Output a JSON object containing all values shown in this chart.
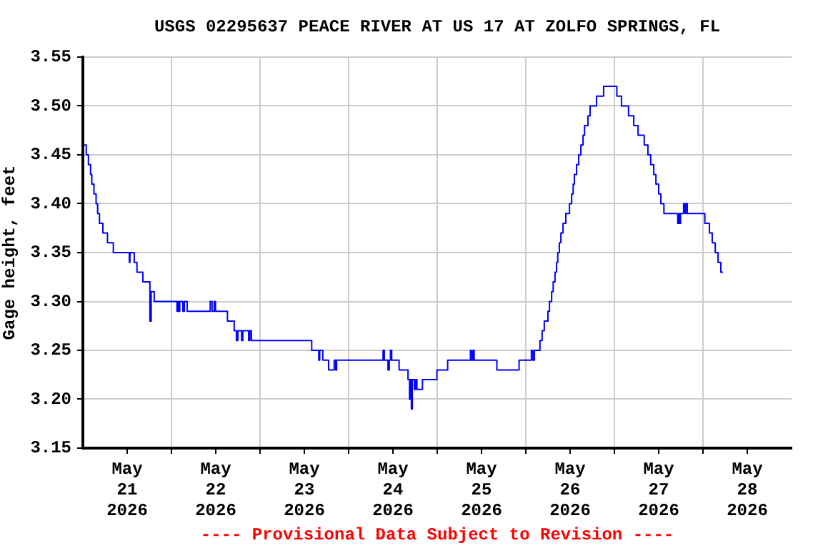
{
  "chart_data": {
    "type": "step",
    "title": "USGS 02295637 PEACE RIVER AT US 17 AT ZOLFO SPRINGS, FL",
    "ylabel": "Gage height, feet",
    "annotations": [
      "---- Provisional Data Subject to Revision ----"
    ],
    "xlim": [
      "2026-05-21T00:00",
      "2026-05-29T00:00"
    ],
    "xticks": [
      {
        "value": "2026-05-21T12:00",
        "label": "May 21 2026"
      },
      {
        "value": "2026-05-22T00:00",
        "label": null
      },
      {
        "value": "2026-05-22T12:00",
        "label": "May 22 2026"
      },
      {
        "value": "2026-05-23T00:00",
        "label": null
      },
      {
        "value": "2026-05-23T12:00",
        "label": "May 23 2026"
      },
      {
        "value": "2026-05-24T00:00",
        "label": null
      },
      {
        "value": "2026-05-24T12:00",
        "label": "May 24 2026"
      },
      {
        "value": "2026-05-25T00:00",
        "label": null
      },
      {
        "value": "2026-05-25T12:00",
        "label": "May 25 2026"
      },
      {
        "value": "2026-05-26T00:00",
        "label": null
      },
      {
        "value": "2026-05-26T12:00",
        "label": "May 26 2026"
      },
      {
        "value": "2026-05-27T00:00",
        "label": null
      },
      {
        "value": "2026-05-27T12:00",
        "label": "May 27 2026"
      },
      {
        "value": "2026-05-28T00:00",
        "label": null
      },
      {
        "value": "2026-05-28T12:00",
        "label": "May 28 2026"
      }
    ],
    "ylim": [
      3.15,
      3.55
    ],
    "yticks": [
      3.15,
      {
        "value": 3.2,
        "label": "3.20"
      },
      3.25,
      {
        "value": 3.3,
        "label": "3.30"
      },
      3.35,
      {
        "value": 3.4,
        "label": "3.40"
      },
      3.45,
      {
        "value": 3.5,
        "label": "3.50"
      },
      3.55
    ],
    "grid": true,
    "marker": "none",
    "line_style": "solid",
    "series": [
      {
        "color": "#0000ff",
        "x": [
          "2026-05-21T00:15",
          "2026-05-21T00:55",
          "2026-05-21T01:30",
          "2026-05-21T02:05",
          "2026-05-21T02:25",
          "2026-05-21T03:00",
          "2026-05-21T03:35",
          "2026-05-21T04:00",
          "2026-05-21T04:30",
          "2026-05-21T05:25",
          "2026-05-21T06:40",
          "2026-05-21T08:15",
          "2026-05-21T12:35",
          "2026-05-21T12:45",
          "2026-05-21T13:55",
          "2026-05-21T14:40",
          "2026-05-21T16:15",
          "2026-05-21T18:10",
          "2026-05-21T18:30",
          "2026-05-21T19:20",
          "2026-05-22T01:30",
          "2026-05-22T01:45",
          "2026-05-22T02:00",
          "2026-05-22T02:15",
          "2026-05-22T03:05",
          "2026-05-22T03:30",
          "2026-05-22T04:15",
          "2026-05-22T10:30",
          "2026-05-22T11:00",
          "2026-05-22T11:35",
          "2026-05-22T11:55",
          "2026-05-22T15:10",
          "2026-05-22T17:00",
          "2026-05-22T17:35",
          "2026-05-22T18:00",
          "2026-05-22T19:00",
          "2026-05-22T19:20",
          "2026-05-22T20:55",
          "2026-05-22T21:15",
          "2026-05-22T21:40",
          "2026-05-23T14:00",
          "2026-05-23T15:55",
          "2026-05-23T16:10",
          "2026-05-23T17:00",
          "2026-05-23T18:35",
          "2026-05-23T20:05",
          "2026-05-23T20:30",
          "2026-05-23T20:45",
          "2026-05-24T09:20",
          "2026-05-24T09:40",
          "2026-05-24T10:40",
          "2026-05-24T11:00",
          "2026-05-24T11:20",
          "2026-05-24T11:40",
          "2026-05-24T13:40",
          "2026-05-24T16:05",
          "2026-05-24T16:30",
          "2026-05-24T16:45",
          "2026-05-24T17:00",
          "2026-05-24T17:15",
          "2026-05-24T17:50",
          "2026-05-24T18:10",
          "2026-05-24T18:30",
          "2026-05-24T20:00",
          "2026-05-24T23:55",
          "2026-05-25T02:50",
          "2026-05-25T09:00",
          "2026-05-25T09:15",
          "2026-05-25T09:40",
          "2026-05-25T10:00",
          "2026-05-25T16:10",
          "2026-05-25T22:10",
          "2026-05-26T01:30",
          "2026-05-26T01:55",
          "2026-05-26T02:20",
          "2026-05-26T03:50",
          "2026-05-26T04:25",
          "2026-05-26T05:00",
          "2026-05-26T06:00",
          "2026-05-26T06:25",
          "2026-05-26T07:00",
          "2026-05-26T07:25",
          "2026-05-26T07:55",
          "2026-05-26T08:20",
          "2026-05-26T08:40",
          "2026-05-26T09:05",
          "2026-05-26T09:30",
          "2026-05-26T10:05",
          "2026-05-26T10:50",
          "2026-05-26T11:50",
          "2026-05-26T12:25",
          "2026-05-26T12:50",
          "2026-05-26T13:10",
          "2026-05-26T13:45",
          "2026-05-26T14:20",
          "2026-05-26T14:55",
          "2026-05-26T15:30",
          "2026-05-26T15:55",
          "2026-05-26T16:50",
          "2026-05-26T17:25",
          "2026-05-26T19:10",
          "2026-05-26T21:05",
          "2026-05-27T00:40",
          "2026-05-27T01:55",
          "2026-05-27T03:50",
          "2026-05-27T05:15",
          "2026-05-27T06:25",
          "2026-05-27T08:05",
          "2026-05-27T09:05",
          "2026-05-27T09:50",
          "2026-05-27T10:40",
          "2026-05-27T11:15",
          "2026-05-27T12:00",
          "2026-05-27T12:35",
          "2026-05-27T13:25",
          "2026-05-27T17:10",
          "2026-05-27T17:30",
          "2026-05-27T17:40",
          "2026-05-27T17:55",
          "2026-05-27T18:45",
          "2026-05-27T19:10",
          "2026-05-27T19:20",
          "2026-05-27T19:45",
          "2026-05-28T00:30",
          "2026-05-28T01:45",
          "2026-05-28T02:30",
          "2026-05-28T03:20",
          "2026-05-28T04:05",
          "2026-05-28T04:50",
          "2026-05-28T05:25"
        ],
        "values": [
          3.46,
          3.45,
          3.44,
          3.43,
          3.42,
          3.41,
          3.4,
          3.39,
          3.38,
          3.37,
          3.36,
          3.35,
          3.34,
          3.35,
          3.34,
          3.33,
          3.32,
          3.28,
          3.31,
          3.3,
          3.29,
          3.3,
          3.29,
          3.3,
          3.29,
          3.3,
          3.29,
          3.3,
          3.29,
          3.3,
          3.29,
          3.28,
          3.27,
          3.26,
          3.27,
          3.26,
          3.27,
          3.26,
          3.27,
          3.26,
          3.25,
          3.24,
          3.25,
          3.24,
          3.23,
          3.24,
          3.23,
          3.24,
          3.25,
          3.24,
          3.23,
          3.24,
          3.25,
          3.24,
          3.23,
          3.22,
          3.2,
          3.22,
          3.19,
          3.22,
          3.21,
          3.22,
          3.21,
          3.22,
          3.23,
          3.24,
          3.25,
          3.24,
          3.25,
          3.24,
          3.23,
          3.24,
          3.25,
          3.24,
          3.25,
          3.26,
          3.27,
          3.28,
          3.29,
          3.3,
          3.31,
          3.32,
          3.33,
          3.34,
          3.35,
          3.36,
          3.37,
          3.38,
          3.39,
          3.4,
          3.41,
          3.42,
          3.43,
          3.44,
          3.45,
          3.46,
          3.47,
          3.48,
          3.49,
          3.5,
          3.51,
          3.52,
          3.51,
          3.5,
          3.49,
          3.48,
          3.47,
          3.46,
          3.45,
          3.44,
          3.43,
          3.42,
          3.41,
          3.4,
          3.39,
          3.38,
          3.39,
          3.38,
          3.39,
          3.4,
          3.39,
          3.4,
          3.39,
          3.38,
          3.37,
          3.36,
          3.35,
          3.34,
          3.33,
          3.33
        ]
      }
    ]
  }
}
